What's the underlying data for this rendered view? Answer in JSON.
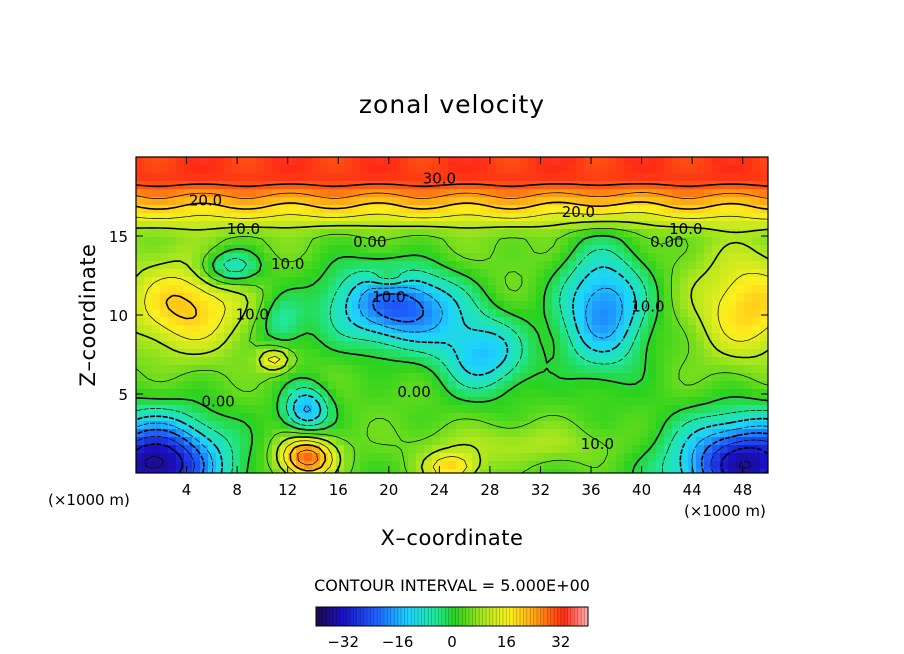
{
  "chart_data": {
    "type": "heatmap",
    "title": "zonal velocity",
    "xlabel": "X–coordinate",
    "ylabel": "Z–coordinate",
    "x_unit_left": "(×1000 m)",
    "x_unit_right": "(×1000 m)",
    "xlim": [
      0,
      50
    ],
    "ylim": [
      0,
      20
    ],
    "x_ticks": [
      4,
      8,
      12,
      16,
      20,
      24,
      28,
      32,
      36,
      40,
      44,
      48
    ],
    "y_ticks": [
      5,
      10,
      15
    ],
    "contour_interval_text": "CONTOUR INTERVAL = 5.000E+00",
    "colorbar": {
      "range": [
        -40,
        40
      ],
      "ticks": [
        -32,
        -16,
        0,
        16,
        32
      ]
    },
    "field_features": [
      {
        "kind": "max",
        "x": 4,
        "z": 10.5,
        "value": 22
      },
      {
        "kind": "max",
        "x": 48,
        "z": 10.5,
        "value": 20
      },
      {
        "kind": "max",
        "x": 13.5,
        "z": 1,
        "value": 30
      },
      {
        "kind": "max",
        "x": 11,
        "z": 7.2,
        "value": 20
      },
      {
        "kind": "max",
        "x": 25,
        "z": 0.5,
        "value": 24
      },
      {
        "kind": "max",
        "x": 20,
        "z": 12.3,
        "value": 16
      },
      {
        "kind": "min",
        "x": 2,
        "z": 1,
        "value": -38
      },
      {
        "kind": "min",
        "x": 48,
        "z": 1,
        "value": -36
      },
      {
        "kind": "min",
        "x": 21,
        "z": 10.5,
        "value": -24
      },
      {
        "kind": "min",
        "x": 27,
        "z": 7.5,
        "value": -18
      },
      {
        "kind": "min",
        "x": 37,
        "z": 10.5,
        "value": -22
      },
      {
        "kind": "min",
        "x": 13.5,
        "z": 4,
        "value": -18
      },
      {
        "kind": "min",
        "x": 7.5,
        "z": 13,
        "value": -14
      },
      {
        "kind": "min",
        "x": 11.5,
        "z": 9.5,
        "value": -10
      }
    ],
    "contour_labels": [
      {
        "text": "30.0",
        "x": 24,
        "z": 18.6
      },
      {
        "text": "20.0",
        "x": 5.5,
        "z": 17.2
      },
      {
        "text": "20.0",
        "x": 35,
        "z": 16.5
      },
      {
        "text": "10.0",
        "x": 8.5,
        "z": 15.4
      },
      {
        "text": "10.0",
        "x": 43.5,
        "z": 15.4
      },
      {
        "text": "0.00",
        "x": 18.5,
        "z": 14.6
      },
      {
        "text": "0.00",
        "x": 42,
        "z": 14.6
      },
      {
        "text": "10.0",
        "x": 12,
        "z": 13.2
      },
      {
        "text": "10.0",
        "x": 20,
        "z": 11.1
      },
      {
        "text": "10.0",
        "x": 9.2,
        "z": 10
      },
      {
        "text": "10.0",
        "x": 40.5,
        "z": 10.5
      },
      {
        "text": "0.00",
        "x": 6.5,
        "z": 4.5
      },
      {
        "text": "0.00",
        "x": 22,
        "z": 5.1
      },
      {
        "text": "10.0",
        "x": 36.5,
        "z": 1.8
      }
    ]
  }
}
